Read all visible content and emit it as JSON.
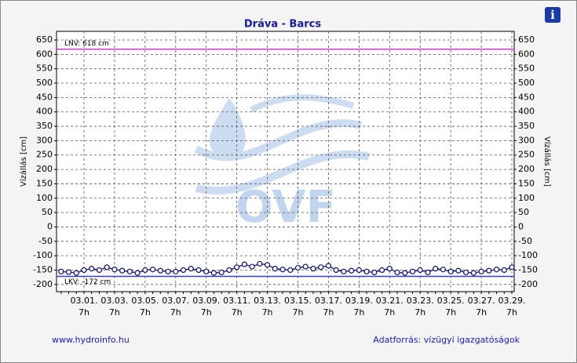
{
  "chart_data": {
    "type": "line",
    "title": "Dráva - Barcs",
    "y_label": "Vízállás [cm]",
    "y2_label": "Vízállás [cm]",
    "categories": [
      null,
      null,
      null,
      "03.01.",
      null,
      null,
      null,
      "03.03.",
      null,
      null,
      null,
      "03.05.",
      null,
      null,
      null,
      "03.07.",
      null,
      null,
      null,
      "03.09.",
      null,
      null,
      null,
      "03.11.",
      null,
      null,
      null,
      "03.13.",
      null,
      null,
      null,
      "03.15.",
      null,
      null,
      null,
      "03.17.",
      null,
      null,
      null,
      "03.19.",
      null,
      null,
      null,
      "03.21.",
      null,
      null,
      null,
      "03.23.",
      null,
      null,
      null,
      "03.25.",
      null,
      null,
      null,
      "03.27.",
      null,
      null,
      null,
      "03.29."
    ],
    "category_time": "7h",
    "series": [
      {
        "name": "Vízállás",
        "color": "#1e2ec8",
        "values": [
          -155,
          -157,
          -160,
          -150,
          -145,
          -150,
          -140,
          -148,
          -152,
          -155,
          -160,
          -150,
          -148,
          -152,
          -155,
          -155,
          -150,
          -145,
          -150,
          -155,
          -160,
          -158,
          -150,
          -140,
          -130,
          -138,
          -128,
          -132,
          -145,
          -148,
          -150,
          -142,
          -138,
          -145,
          -140,
          -135,
          -150,
          -155,
          -152,
          -150,
          -155,
          -158,
          -150,
          -145,
          -158,
          -160,
          -155,
          -150,
          -158,
          -145,
          -148,
          -155,
          -152,
          -158,
          -160,
          -155,
          -152,
          -148,
          -150,
          -140
        ]
      }
    ],
    "reference_lines": [
      {
        "label": "LNV: 618 cm",
        "value": 618,
        "color": "#d23cd2"
      },
      {
        "label": "LKV: -172 cm",
        "value": -172,
        "color": "#3c3cd2"
      }
    ],
    "ylim": [
      -225,
      680
    ],
    "yticks": [
      -200,
      -150,
      -100,
      -50,
      0,
      50,
      100,
      150,
      200,
      250,
      300,
      350,
      400,
      450,
      500,
      550,
      600,
      650
    ],
    "grid": true,
    "watermark": "OVF",
    "footer_left": "www.hydroinfo.hu",
    "footer_right": "Adatforrás: vízügyi igazgatóságok",
    "info_icon": "i"
  }
}
